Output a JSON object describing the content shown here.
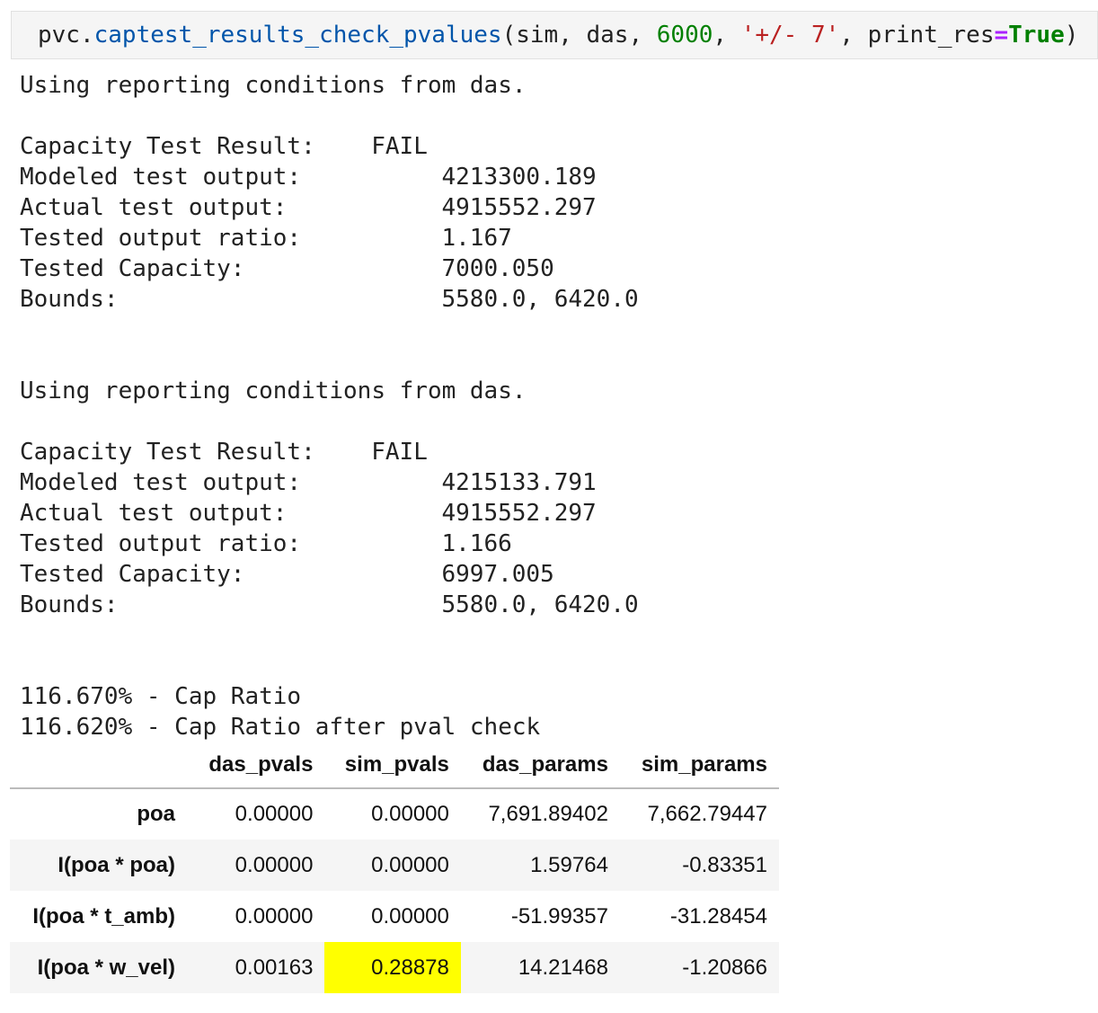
{
  "code": {
    "parts": [
      "pvc.",
      "captest_results_check_pvalues",
      "(sim, das, ",
      "6000",
      ", ",
      "'+/- 7'",
      ", print_res",
      "=",
      "True",
      ")"
    ]
  },
  "output": {
    "blocks": [
      {
        "intro": "Using reporting conditions from das.",
        "result_label": "Capacity Test Result:",
        "result": "FAIL",
        "rows": [
          [
            "Modeled test output:",
            "4213300.189"
          ],
          [
            "Actual test output:",
            "4915552.297"
          ],
          [
            "Tested output ratio:",
            "1.167"
          ],
          [
            "Tested Capacity:",
            "7000.050"
          ],
          [
            "Bounds:",
            "5580.0, 6420.0"
          ]
        ]
      },
      {
        "intro": "Using reporting conditions from das.",
        "result_label": "Capacity Test Result:",
        "result": "FAIL",
        "rows": [
          [
            "Modeled test output:",
            "4215133.791"
          ],
          [
            "Actual test output:",
            "4915552.297"
          ],
          [
            "Tested output ratio:",
            "1.166"
          ],
          [
            "Tested Capacity:",
            "6997.005"
          ],
          [
            "Bounds:",
            "5580.0, 6420.0"
          ]
        ]
      }
    ],
    "ratios": [
      "116.670% - Cap Ratio",
      "116.620% - Cap Ratio after pval check"
    ]
  },
  "table": {
    "columns": [
      "das_pvals",
      "sim_pvals",
      "das_params",
      "sim_params"
    ],
    "rows": [
      {
        "label": "poa",
        "cells": [
          "0.00000",
          "0.00000",
          "7,691.89402",
          "7,662.79447"
        ]
      },
      {
        "label": "I(poa * poa)",
        "cells": [
          "0.00000",
          "0.00000",
          "1.59764",
          "-0.83351"
        ]
      },
      {
        "label": "I(poa * t_amb)",
        "cells": [
          "0.00000",
          "0.00000",
          "-51.99357",
          "-31.28454"
        ]
      },
      {
        "label": "I(poa * w_vel)",
        "cells": [
          "0.00163",
          "0.28878",
          "14.21468",
          "-1.20866"
        ]
      }
    ]
  }
}
